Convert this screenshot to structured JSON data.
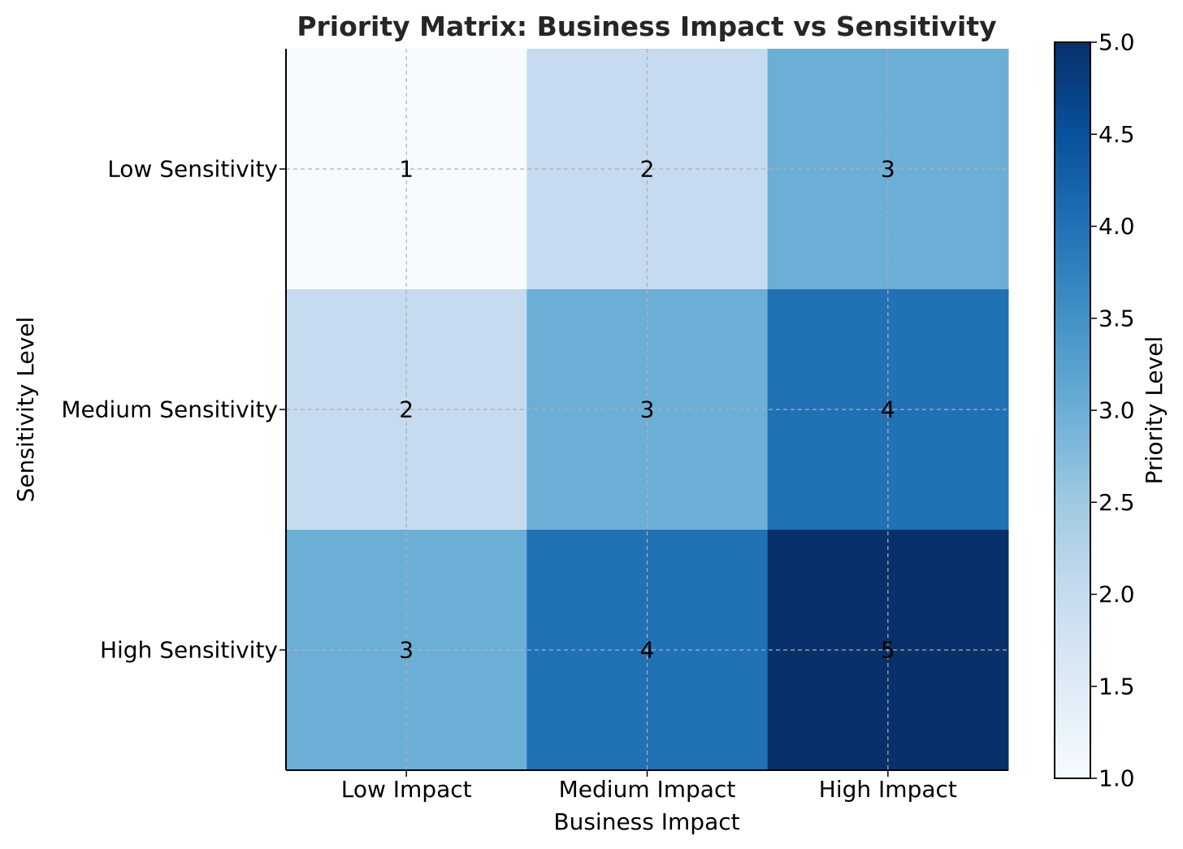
{
  "chart_data": {
    "type": "heatmap",
    "title": "Priority Matrix: Business Impact vs Sensitivity",
    "xlabel": "Business Impact",
    "ylabel": "Sensitivity Level",
    "x_categories": [
      "Low Impact",
      "Medium Impact",
      "High Impact"
    ],
    "y_categories": [
      "Low Sensitivity",
      "Medium Sensitivity",
      "High Sensitivity"
    ],
    "values": [
      [
        1,
        2,
        3
      ],
      [
        2,
        3,
        4
      ],
      [
        3,
        4,
        5
      ]
    ],
    "colormap": "Blues",
    "grid": true,
    "colorbar": {
      "label": "Priority Level",
      "range": [
        1.0,
        5.0
      ],
      "ticks": [
        "1.0",
        "1.5",
        "2.0",
        "2.5",
        "3.0",
        "3.5",
        "4.0",
        "4.5",
        "5.0"
      ]
    }
  }
}
